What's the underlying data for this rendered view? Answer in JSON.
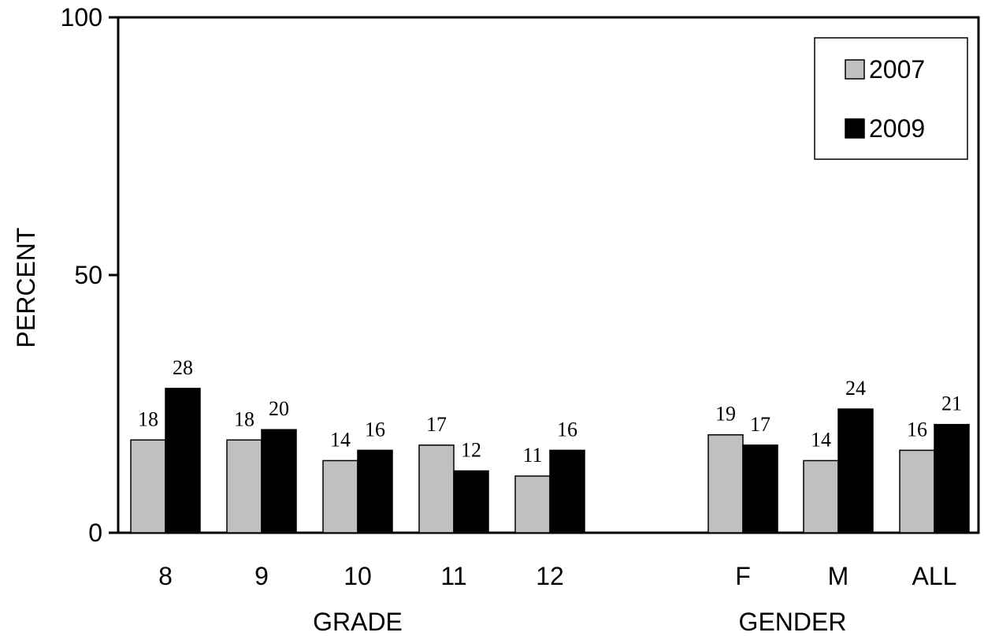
{
  "chart_data": {
    "type": "bar",
    "categories": [
      "8",
      "9",
      "10",
      "11",
      "12",
      "F",
      "M",
      "ALL"
    ],
    "series": [
      {
        "name": "2007",
        "values": [
          18,
          18,
          14,
          17,
          11,
          19,
          14,
          16
        ],
        "color": "#c0c0c0"
      },
      {
        "name": "2009",
        "values": [
          28,
          20,
          16,
          12,
          16,
          17,
          24,
          21
        ],
        "color": "#000000"
      }
    ],
    "groups": [
      {
        "label": "GRADE",
        "categories": [
          "8",
          "9",
          "10",
          "11",
          "12"
        ]
      },
      {
        "label": "GENDER",
        "categories": [
          "F",
          "M",
          "ALL"
        ]
      }
    ],
    "title": "",
    "xlabel": "",
    "ylabel": "PERCENT",
    "ylim": [
      0,
      100
    ],
    "yticks": [
      0,
      50,
      100
    ],
    "grid": false,
    "legend_position": "top-right"
  }
}
